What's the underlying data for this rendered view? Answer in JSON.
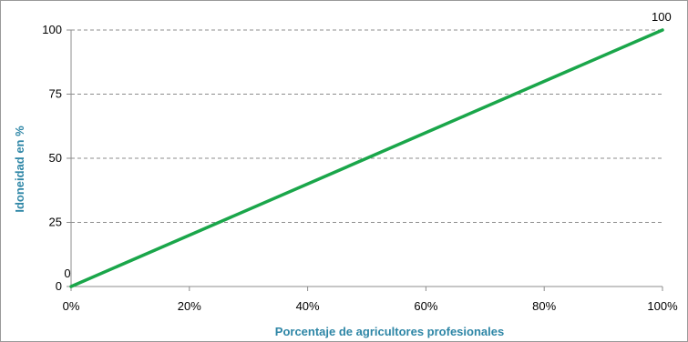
{
  "chart_data": {
    "type": "line",
    "title": "",
    "xlabel": "Porcentaje de agricultores profesionales",
    "ylabel": "Idoneidad en %",
    "x_ticks": [
      "0%",
      "20%",
      "40%",
      "60%",
      "80%",
      "100%"
    ],
    "y_ticks": [
      "0",
      "25",
      "50",
      "75",
      "100"
    ],
    "xlim": [
      0,
      100
    ],
    "ylim": [
      0,
      100
    ],
    "grid": "horizontal dashed",
    "legend": "none",
    "series": [
      {
        "x": [
          0,
          100
        ],
        "values": [
          0,
          100
        ],
        "color": "#1aa64a",
        "data_labels": [
          "0",
          "100"
        ]
      }
    ],
    "colors": {
      "line": "#1aa64a",
      "axis_title": "#2e86a6",
      "gridline": "#8c8c8c",
      "axis": "#8c8c8c",
      "frame": "#9a9a9a"
    }
  }
}
